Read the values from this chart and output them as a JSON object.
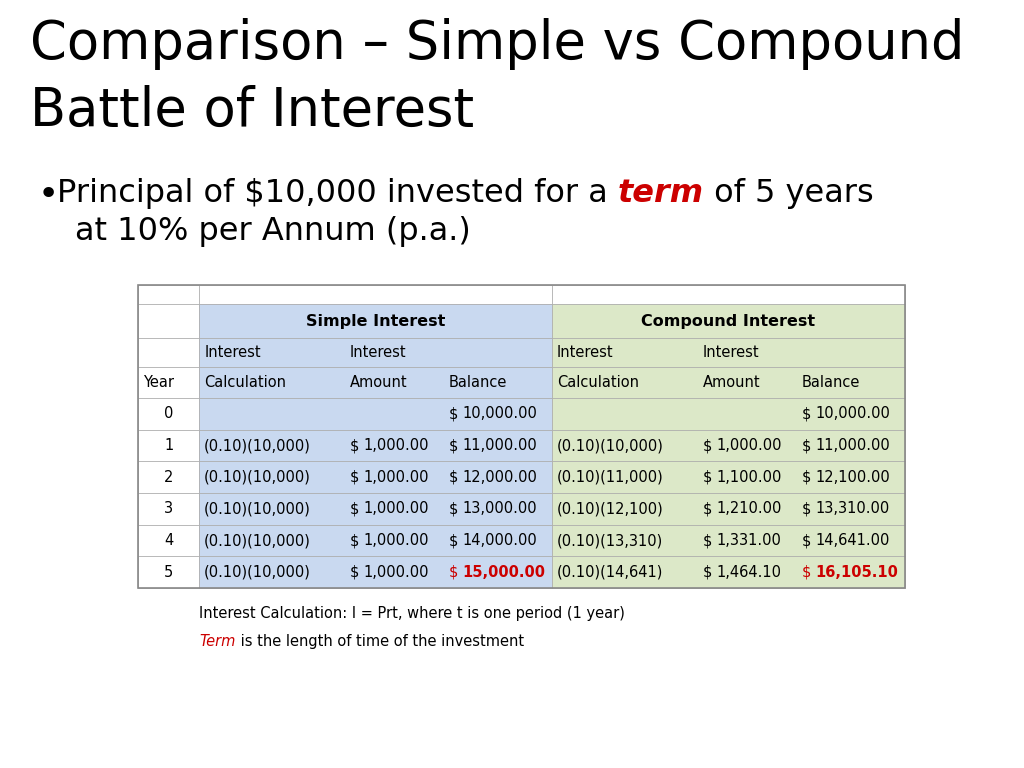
{
  "title_line1": "Comparison – Simple vs Compound",
  "title_line2": "Battle of Interest",
  "simple_header": "Simple Interest",
  "compound_header": "Compound Interest",
  "rows": [
    [
      "0",
      "",
      "",
      "10,000.00",
      "",
      "",
      "10,000.00"
    ],
    [
      "1",
      "(0.10)(10,000)",
      "1,000.00",
      "11,000.00",
      "(0.10)(10,000)",
      "1,000.00",
      "11,000.00"
    ],
    [
      "2",
      "(0.10)(10,000)",
      "1,000.00",
      "12,000.00",
      "(0.10)(11,000)",
      "1,100.00",
      "12,100.00"
    ],
    [
      "3",
      "(0.10)(10,000)",
      "1,000.00",
      "13,000.00",
      "(0.10)(12,100)",
      "1,210.00",
      "13,310.00"
    ],
    [
      "4",
      "(0.10)(10,000)",
      "1,000.00",
      "14,000.00",
      "(0.10)(13,310)",
      "1,331.00",
      "14,641.00"
    ],
    [
      "5",
      "(0.10)(10,000)",
      "1,000.00",
      "15,000.00",
      "(0.10)(14,641)",
      "1,464.10",
      "16,105.10"
    ]
  ],
  "simple_bg": "#c9d9f0",
  "compound_bg": "#dce8c8",
  "highlight_red": "#cc0000",
  "bg_color": "#ffffff",
  "title_fontsize": 38,
  "bullet_fontsize": 23,
  "table_fontsize": 10.5,
  "note_fontsize": 10.5,
  "note_text1": "Interest Calculation: I = Prt, where t is one period (1 year)",
  "note_text2_pre": "Term",
  "note_text2_post": " is the length of time of the investment"
}
